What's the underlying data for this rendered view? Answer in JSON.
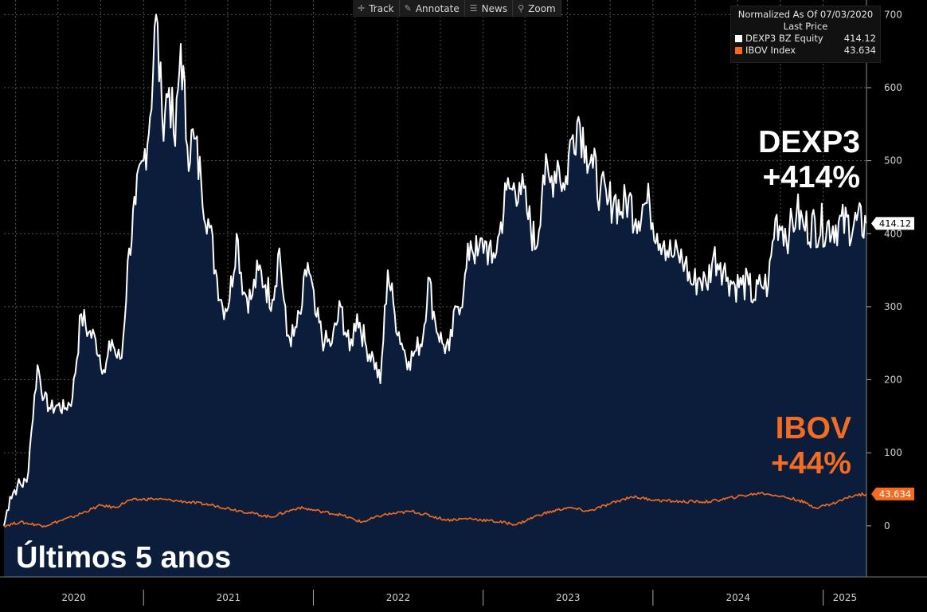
{
  "toolbar": {
    "items": [
      {
        "label": "Track",
        "icon": "crosshair-icon"
      },
      {
        "label": "Annotate",
        "icon": "pencil-icon"
      },
      {
        "label": "News",
        "icon": "news-icon"
      },
      {
        "label": "Zoom",
        "icon": "magnifier-icon"
      }
    ]
  },
  "legend": {
    "line1": "Normalized As Of 07/03/2020",
    "line2": "Last Price",
    "series": [
      {
        "name": "DEXP3 BZ Equity",
        "value": "414.12",
        "color": "#ffffff"
      },
      {
        "name": "IBOV Index",
        "value": "43.634",
        "color": "#f26c23"
      }
    ]
  },
  "annotations": {
    "dexp_name": "DEXP3",
    "dexp_change": "+414%",
    "ibov_name": "IBOV",
    "ibov_change": "+44%",
    "period": "Últimos 5 anos"
  },
  "chart_data": {
    "type": "area",
    "x_start": "2020-03-07",
    "x_end": "2025-04-04",
    "ylim": [
      -70,
      720
    ],
    "yticks": [
      0,
      100,
      200,
      300,
      400,
      500,
      600,
      700
    ],
    "year_labels": [
      "2020",
      "2021",
      "2022",
      "2023",
      "2024",
      "2025"
    ],
    "year_bounds": [
      "2020-01-01",
      "2021-01-01",
      "2022-01-01",
      "2023-01-01",
      "2024-01-01",
      "2025-01-01"
    ],
    "grid": true,
    "last_labels": [
      {
        "series": "DEXP3 BZ Equity",
        "text": "414.12",
        "value": 414.12,
        "color": "#ffffff"
      },
      {
        "series": "IBOV Index",
        "text": "43.634",
        "value": 43.634,
        "color": "#f26c23"
      }
    ],
    "series": [
      {
        "name": "DEXP3 BZ Equity",
        "color": "#ffffff",
        "fill": "#0b1d3a",
        "points": [
          [
            "2020-03-07",
            0
          ],
          [
            "2020-03-20",
            40
          ],
          [
            "2020-04-05",
            55
          ],
          [
            "2020-04-25",
            60
          ],
          [
            "2020-05-05",
            130
          ],
          [
            "2020-05-18",
            220
          ],
          [
            "2020-06-01",
            175
          ],
          [
            "2020-06-15",
            160
          ],
          [
            "2020-07-01",
            165
          ],
          [
            "2020-07-15",
            160
          ],
          [
            "2020-08-01",
            175
          ],
          [
            "2020-08-20",
            290
          ],
          [
            "2020-09-05",
            265
          ],
          [
            "2020-09-20",
            255
          ],
          [
            "2020-10-10",
            210
          ],
          [
            "2020-10-25",
            255
          ],
          [
            "2020-11-05",
            230
          ],
          [
            "2020-11-15",
            230
          ],
          [
            "2020-12-01",
            380
          ],
          [
            "2020-12-15",
            440
          ],
          [
            "2021-01-01",
            500
          ],
          [
            "2021-01-15",
            560
          ],
          [
            "2021-01-28",
            700
          ],
          [
            "2021-02-10",
            560
          ],
          [
            "2021-02-25",
            600
          ],
          [
            "2021-03-10",
            520
          ],
          [
            "2021-03-22",
            660
          ],
          [
            "2021-04-05",
            520
          ],
          [
            "2021-04-20",
            530
          ],
          [
            "2021-05-05",
            470
          ],
          [
            "2021-05-20",
            420
          ],
          [
            "2021-06-05",
            350
          ],
          [
            "2021-06-20",
            300
          ],
          [
            "2021-07-05",
            310
          ],
          [
            "2021-07-20",
            400
          ],
          [
            "2021-08-05",
            320
          ],
          [
            "2021-08-20",
            310
          ],
          [
            "2021-09-05",
            350
          ],
          [
            "2021-09-20",
            330
          ],
          [
            "2021-10-05",
            310
          ],
          [
            "2021-10-20",
            380
          ],
          [
            "2021-11-05",
            260
          ],
          [
            "2021-11-20",
            260
          ],
          [
            "2021-12-05",
            290
          ],
          [
            "2021-12-20",
            360
          ],
          [
            "2022-01-05",
            290
          ],
          [
            "2022-01-25",
            250
          ],
          [
            "2022-02-10",
            250
          ],
          [
            "2022-03-01",
            300
          ],
          [
            "2022-03-20",
            240
          ],
          [
            "2022-04-05",
            290
          ],
          [
            "2022-04-25",
            245
          ],
          [
            "2022-05-10",
            230
          ],
          [
            "2022-05-25",
            195
          ],
          [
            "2022-06-10",
            350
          ],
          [
            "2022-06-25",
            290
          ],
          [
            "2022-07-10",
            250
          ],
          [
            "2022-07-25",
            225
          ],
          [
            "2022-08-10",
            240
          ],
          [
            "2022-08-25",
            260
          ],
          [
            "2022-09-05",
            340
          ],
          [
            "2022-09-20",
            280
          ],
          [
            "2022-10-05",
            250
          ],
          [
            "2022-10-20",
            240
          ],
          [
            "2022-11-05",
            300
          ],
          [
            "2022-11-20",
            320
          ],
          [
            "2022-12-05",
            390
          ],
          [
            "2022-12-20",
            370
          ],
          [
            "2023-01-05",
            390
          ],
          [
            "2023-01-20",
            360
          ],
          [
            "2023-02-05",
            400
          ],
          [
            "2023-02-20",
            460
          ],
          [
            "2023-03-05",
            460
          ],
          [
            "2023-03-20",
            470
          ],
          [
            "2023-04-05",
            430
          ],
          [
            "2023-04-25",
            380
          ],
          [
            "2023-05-10",
            480
          ],
          [
            "2023-05-25",
            470
          ],
          [
            "2023-06-10",
            500
          ],
          [
            "2023-06-25",
            460
          ],
          [
            "2023-07-10",
            530
          ],
          [
            "2023-07-25",
            560
          ],
          [
            "2023-08-10",
            520
          ],
          [
            "2023-08-25",
            490
          ],
          [
            "2023-09-10",
            460
          ],
          [
            "2023-09-25",
            440
          ],
          [
            "2023-10-10",
            450
          ],
          [
            "2023-10-25",
            430
          ],
          [
            "2023-11-10",
            450
          ],
          [
            "2023-11-25",
            420
          ],
          [
            "2023-12-10",
            440
          ],
          [
            "2023-12-25",
            440
          ],
          [
            "2024-01-10",
            400
          ],
          [
            "2024-01-25",
            390
          ],
          [
            "2024-02-10",
            370
          ],
          [
            "2024-02-25",
            370
          ],
          [
            "2024-03-10",
            360
          ],
          [
            "2024-03-25",
            330
          ],
          [
            "2024-04-10",
            340
          ],
          [
            "2024-04-25",
            330
          ],
          [
            "2024-05-10",
            370
          ],
          [
            "2024-05-25",
            360
          ],
          [
            "2024-06-10",
            340
          ],
          [
            "2024-06-25",
            330
          ],
          [
            "2024-07-10",
            330
          ],
          [
            "2024-07-25",
            330
          ],
          [
            "2024-08-05",
            310
          ],
          [
            "2024-08-20",
            330
          ],
          [
            "2024-09-05",
            330
          ],
          [
            "2024-09-20",
            420
          ],
          [
            "2024-10-05",
            410
          ],
          [
            "2024-10-20",
            400
          ],
          [
            "2024-11-05",
            430
          ],
          [
            "2024-11-20",
            410
          ],
          [
            "2025-04-04",
            414.12
          ]
        ]
      },
      {
        "name": "IBOV Index",
        "color": "#f26c23",
        "points": [
          [
            "2020-03-07",
            0
          ],
          [
            "2020-04-10",
            5
          ],
          [
            "2020-06-01",
            0
          ],
          [
            "2020-08-01",
            12
          ],
          [
            "2020-10-01",
            28
          ],
          [
            "2020-11-01",
            25
          ],
          [
            "2020-12-01",
            35
          ],
          [
            "2021-01-20",
            37
          ],
          [
            "2021-03-01",
            35
          ],
          [
            "2021-04-01",
            33
          ],
          [
            "2021-06-01",
            28
          ],
          [
            "2021-08-01",
            20
          ],
          [
            "2021-10-01",
            12
          ],
          [
            "2021-12-01",
            25
          ],
          [
            "2022-01-15",
            20
          ],
          [
            "2022-03-01",
            15
          ],
          [
            "2022-04-15",
            5
          ],
          [
            "2022-06-01",
            15
          ],
          [
            "2022-08-01",
            20
          ],
          [
            "2022-10-15",
            8
          ],
          [
            "2022-12-01",
            10
          ],
          [
            "2023-01-15",
            7
          ],
          [
            "2023-03-15",
            2
          ],
          [
            "2023-05-01",
            15
          ],
          [
            "2023-07-01",
            25
          ],
          [
            "2023-08-15",
            20
          ],
          [
            "2023-10-01",
            30
          ],
          [
            "2023-11-15",
            40
          ],
          [
            "2024-01-10",
            35
          ],
          [
            "2024-03-01",
            33
          ],
          [
            "2024-05-01",
            33
          ],
          [
            "2024-07-01",
            40
          ],
          [
            "2024-08-20",
            45
          ],
          [
            "2024-09-20",
            42
          ],
          [
            "2024-11-10",
            35
          ],
          [
            "2024-12-15",
            25
          ],
          [
            "2025-01-20",
            30
          ],
          [
            "2025-02-20",
            38
          ],
          [
            "2025-03-10",
            42
          ],
          [
            "2025-04-04",
            43.634
          ]
        ]
      }
    ]
  }
}
